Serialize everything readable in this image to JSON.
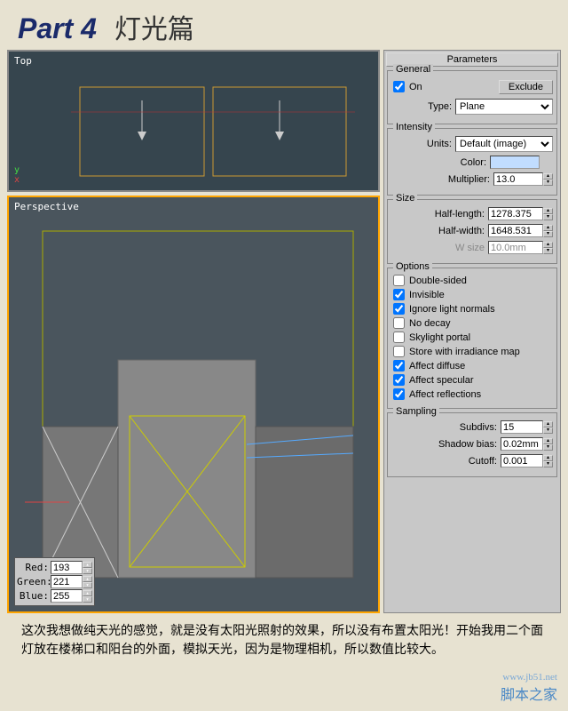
{
  "header": {
    "part": "Part 4",
    "cn": "灯光篇"
  },
  "viewport": {
    "top_label": "Top",
    "persp_label": "Perspective"
  },
  "rgb": {
    "red_label": "Red:",
    "red_value": "193",
    "green_label": "Green:",
    "green_value": "221",
    "blue_label": "Blue:",
    "blue_value": "255"
  },
  "panel": {
    "title": "Parameters",
    "general": {
      "title": "General",
      "on_label": "On",
      "on_checked": true,
      "exclude_label": "Exclude",
      "type_label": "Type:",
      "type_value": "Plane"
    },
    "intensity": {
      "title": "Intensity",
      "units_label": "Units:",
      "units_value": "Default (image)",
      "color_label": "Color:",
      "color_value": "#c1ddff",
      "multiplier_label": "Multiplier:",
      "multiplier_value": "13.0"
    },
    "size": {
      "title": "Size",
      "half_length_label": "Half-length:",
      "half_length_value": "1278.375",
      "half_width_label": "Half-width:",
      "half_width_value": "1648.531",
      "w_size_label": "W size",
      "w_size_value": "10.0mm"
    },
    "options": {
      "title": "Options",
      "items": [
        {
          "label": "Double-sided",
          "checked": false
        },
        {
          "label": "Invisible",
          "checked": true
        },
        {
          "label": "Ignore light normals",
          "checked": true
        },
        {
          "label": "No decay",
          "checked": false
        },
        {
          "label": "Skylight portal",
          "checked": false
        },
        {
          "label": "Store with irradiance map",
          "checked": false
        },
        {
          "label": "Affect diffuse",
          "checked": true
        },
        {
          "label": "Affect specular",
          "checked": true
        },
        {
          "label": "Affect reflections",
          "checked": true
        }
      ]
    },
    "sampling": {
      "title": "Sampling",
      "subdivs_label": "Subdivs:",
      "subdivs_value": "15",
      "shadow_bias_label": "Shadow bias:",
      "shadow_bias_value": "0.02mm",
      "cutoff_label": "Cutoff:",
      "cutoff_value": "0.001"
    }
  },
  "bottom_text": "这次我想做纯天光的感觉，就是没有太阳光照射的效果，所以没有布置太阳光！开始我用二个面灯放在楼梯口和阳台的外面，模拟天光，因为是物理相机，所以数值比较大。",
  "watermark": {
    "main": "脚本之家",
    "sub": "www.jb51.net"
  }
}
